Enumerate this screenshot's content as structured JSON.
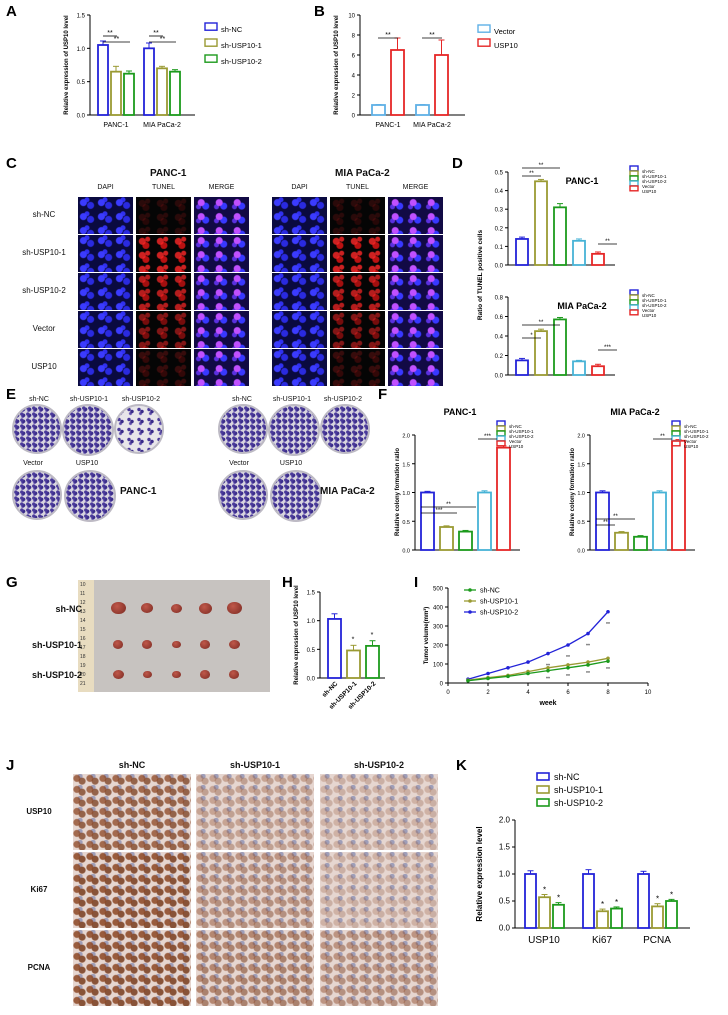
{
  "colors": {
    "blue": "#2323d8",
    "olive": "#9a9a33",
    "green": "#1c9a1c",
    "cyan": "#47b3d6",
    "red": "#e52626",
    "lightblue": "#5fb0e6"
  },
  "legend3": [
    "sh-NC",
    "sh-USP10-1",
    "sh-USP10-2"
  ],
  "legend5": [
    "sh-NC",
    "sh-USP10-1",
    "sh-USP10-2",
    "Vector",
    "USP10"
  ],
  "legend2": [
    "Vector",
    "USP10"
  ],
  "panelA": {
    "label": "A",
    "ylabel": "Relative expression of USP10 level",
    "groups": [
      "PANC-1",
      "MIA PaCa-2"
    ],
    "yticks": [
      "0.0",
      "0.5",
      "1.0",
      "1.5"
    ],
    "sig": [
      "**",
      "**",
      "**",
      "**"
    ]
  },
  "panelB": {
    "label": "B",
    "ylabel": "Relative expression of USP10 level",
    "groups": [
      "PANC-1",
      "MIA PaCa-2"
    ],
    "yticks": [
      "0",
      "2",
      "4",
      "6",
      "8",
      "10"
    ],
    "sig": [
      "**",
      "**"
    ]
  },
  "panelC": {
    "label": "C",
    "title_left": "PANC-1",
    "title_right": "MIA PaCa-2",
    "columns": [
      "DAPI",
      "TUNEL",
      "MERGE"
    ],
    "rows": [
      "sh-NC",
      "sh-USP10-1",
      "sh-USP10-2",
      "Vector",
      "USP10"
    ]
  },
  "panelD": {
    "label": "D",
    "ylabel": "Ratio of TUNEL positive cells",
    "title1": "PANC-1",
    "title2": "MIA PaCa-2",
    "yticks1": [
      "0.0",
      "0.1",
      "0.2",
      "0.3",
      "0.4",
      "0.5"
    ],
    "yticks2": [
      "0.0",
      "0.2",
      "0.4",
      "0.6",
      "0.8"
    ],
    "sig1": [
      "**",
      "**",
      "**"
    ],
    "sig2": [
      "**",
      "*",
      "***"
    ]
  },
  "panelE": {
    "label": "E",
    "left_top": [
      "sh-NC",
      "sh-USP10-1",
      "sh-USP10-2"
    ],
    "left_bottom": [
      "Vector",
      "USP10"
    ],
    "left_name": "PANC-1",
    "right_name": "MIA PaCa-2"
  },
  "panelF": {
    "label": "F",
    "ylabel": "Relative colony formation ratio",
    "title1": "PANC-1",
    "title2": "MIA PaCa-2",
    "yticks": [
      "0.0",
      "0.5",
      "1.0",
      "1.5",
      "2.0"
    ],
    "sig1": [
      "***",
      "**",
      "***"
    ],
    "sig2": [
      "**",
      "**",
      "**"
    ]
  },
  "panelG": {
    "label": "G",
    "rows": [
      "sh-NC",
      "sh-USP10-1",
      "sh-USP10-2"
    ],
    "ruler": [
      "10",
      "11",
      "12",
      "13",
      "14",
      "15",
      "16",
      "17",
      "18",
      "19",
      "20",
      "21"
    ]
  },
  "panelH": {
    "label": "H",
    "ylabel": "Relative expression of USP10 level",
    "cats": [
      "sh-NC",
      "sh-USP10-1",
      "sh-USP10-2"
    ],
    "yticks": [
      "0.0",
      "0.5",
      "1.0",
      "1.5"
    ],
    "sig": [
      "*",
      "*"
    ]
  },
  "panelI": {
    "label": "I",
    "ylabel": "Tumor volume(mm³)",
    "xlabel": "week",
    "xticks": [
      "0",
      "2",
      "4",
      "6",
      "8",
      "10"
    ],
    "yticks": [
      "0",
      "100",
      "200",
      "300",
      "400",
      "500"
    ],
    "sig": "**"
  },
  "panelJ": {
    "label": "J",
    "cols": [
      "sh-NC",
      "sh-USP10-1",
      "sh-USP10-2"
    ],
    "rows": [
      "USP10",
      "Ki67",
      "PCNA"
    ]
  },
  "panelK": {
    "label": "K",
    "ylabel": "Relative expression level",
    "groups": [
      "USP10",
      "Ki67",
      "PCNA"
    ],
    "yticks": [
      "0.0",
      "0.5",
      "1.0",
      "1.5",
      "2.0"
    ],
    "sig": "*"
  },
  "chart_data": [
    {
      "id": "A",
      "type": "bar",
      "categories": [
        "PANC-1",
        "MIA PaCa-2"
      ],
      "ylim": [
        0,
        1.5
      ],
      "series": [
        {
          "name": "sh-NC",
          "values": [
            1.05,
            1.0
          ],
          "err": [
            0.06,
            0.08
          ]
        },
        {
          "name": "sh-USP10-1",
          "values": [
            0.65,
            0.7
          ],
          "err": [
            0.08,
            0.03
          ]
        },
        {
          "name": "sh-USP10-2",
          "values": [
            0.62,
            0.65
          ],
          "err": [
            0.04,
            0.03
          ]
        }
      ]
    },
    {
      "id": "B",
      "type": "bar",
      "categories": [
        "PANC-1",
        "MIA PaCa-2"
      ],
      "ylim": [
        0,
        10
      ],
      "series": [
        {
          "name": "Vector",
          "values": [
            1.0,
            1.0
          ],
          "err": [
            0.05,
            0.05
          ]
        },
        {
          "name": "USP10",
          "values": [
            6.5,
            6.0
          ],
          "err": [
            1.2,
            1.5
          ]
        }
      ]
    },
    {
      "id": "D1",
      "type": "bar",
      "ylim": [
        0,
        0.5
      ],
      "categories": [
        "sh-NC",
        "sh-USP10-1",
        "sh-USP10-2",
        "Vector",
        "USP10"
      ],
      "values": [
        0.14,
        0.45,
        0.31,
        0.13,
        0.06
      ],
      "err": [
        0.01,
        0.01,
        0.02,
        0.01,
        0.01
      ]
    },
    {
      "id": "D2",
      "type": "bar",
      "ylim": [
        0,
        0.8
      ],
      "categories": [
        "sh-NC",
        "sh-USP10-1",
        "sh-USP10-2",
        "Vector",
        "USP10"
      ],
      "values": [
        0.15,
        0.45,
        0.57,
        0.14,
        0.09
      ],
      "err": [
        0.02,
        0.02,
        0.02,
        0.01,
        0.02
      ]
    },
    {
      "id": "F1",
      "type": "bar",
      "ylim": [
        0,
        2.0
      ],
      "categories": [
        "sh-NC",
        "sh-USP10-1",
        "sh-USP10-2",
        "Vector",
        "USP10"
      ],
      "values": [
        1.0,
        0.4,
        0.32,
        1.0,
        1.78
      ],
      "err": [
        0.02,
        0.02,
        0.02,
        0.03,
        0.03
      ]
    },
    {
      "id": "F2",
      "type": "bar",
      "ylim": [
        0,
        2.0
      ],
      "categories": [
        "sh-NC",
        "sh-USP10-1",
        "sh-USP10-2",
        "Vector",
        "USP10"
      ],
      "values": [
        1.0,
        0.3,
        0.23,
        1.0,
        1.9
      ],
      "err": [
        0.03,
        0.02,
        0.02,
        0.03,
        0.02
      ]
    },
    {
      "id": "H",
      "type": "bar",
      "ylim": [
        0,
        1.5
      ],
      "categories": [
        "sh-NC",
        "sh-USP10-1",
        "sh-USP10-2"
      ],
      "values": [
        1.03,
        0.48,
        0.56
      ],
      "err": [
        0.09,
        0.09,
        0.09
      ]
    },
    {
      "id": "I",
      "type": "line",
      "xlim": [
        0,
        10
      ],
      "ylim": [
        0,
        500
      ],
      "x": [
        1,
        2,
        3,
        4,
        5,
        6,
        7,
        8
      ],
      "series": [
        {
          "name": "sh-NC",
          "values": [
            20,
            50,
            80,
            110,
            155,
            200,
            260,
            375
          ]
        },
        {
          "name": "sh-USP10-1",
          "values": [
            15,
            28,
            40,
            60,
            80,
            95,
            110,
            130
          ]
        },
        {
          "name": "sh-USP10-2",
          "values": [
            12,
            24,
            35,
            50,
            65,
            80,
            95,
            115
          ]
        }
      ]
    },
    {
      "id": "K",
      "type": "bar",
      "ylim": [
        0,
        2.0
      ],
      "categories": [
        "USP10",
        "Ki67",
        "PCNA"
      ],
      "series": [
        {
          "name": "sh-NC",
          "values": [
            1.0,
            1.0,
            1.0
          ],
          "err": [
            0.06,
            0.08,
            0.05
          ]
        },
        {
          "name": "sh-USP10-1",
          "values": [
            0.57,
            0.31,
            0.4
          ],
          "err": [
            0.05,
            0.04,
            0.05
          ]
        },
        {
          "name": "sh-USP10-2",
          "values": [
            0.43,
            0.36,
            0.5
          ],
          "err": [
            0.04,
            0.03,
            0.03
          ]
        }
      ]
    }
  ]
}
